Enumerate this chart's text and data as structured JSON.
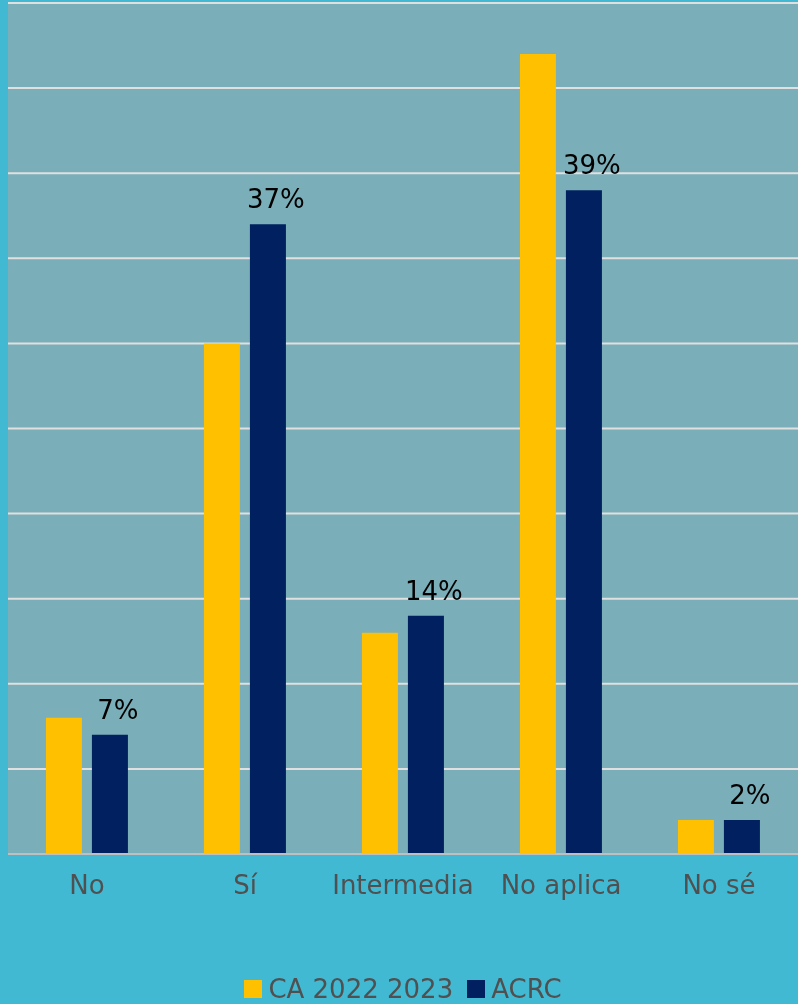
{
  "chart_data": {
    "type": "bar",
    "categories": [
      "No",
      "Sí",
      "Intermedia",
      "No aplica",
      "No sé"
    ],
    "series": [
      {
        "name": "CA 2022 2023",
        "color": "#ffc000",
        "values": [
          8,
          30,
          13,
          47,
          2
        ]
      },
      {
        "name": "ACRC",
        "color": "#002060",
        "values": [
          7,
          37,
          14,
          39,
          2
        ],
        "value_labels": [
          "7%",
          "37%",
          "14%",
          "39%",
          "2%"
        ]
      }
    ],
    "ylim": [
      0,
      50
    ],
    "yticks": [
      {
        "value": 0,
        "label": null
      },
      {
        "value": 5,
        "label": null
      },
      {
        "value": 10,
        "label": null
      },
      {
        "value": 15,
        "label": null
      },
      {
        "value": 20,
        "label": null
      },
      {
        "value": 25,
        "label": null
      },
      {
        "value": 30,
        "label": null
      },
      {
        "value": 35,
        "label": null
      },
      {
        "value": 40,
        "label": null
      },
      {
        "value": 45,
        "label": null
      },
      {
        "value": 50,
        "label": null
      }
    ],
    "grid": "y",
    "tick_labels": "x",
    "legend": "bottom"
  }
}
